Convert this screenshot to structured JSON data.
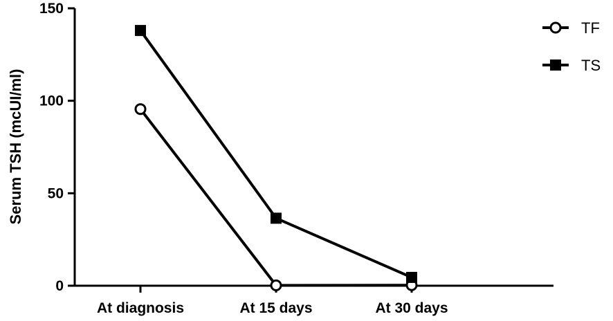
{
  "chart_data": {
    "type": "line",
    "categories": [
      "At diagnosis",
      "At 15 days",
      "At 30 days"
    ],
    "series": [
      {
        "name": "TF",
        "marker": "open-circle",
        "values": [
          95.5,
          0.2,
          0.3
        ]
      },
      {
        "name": "TS",
        "marker": "filled-square",
        "values": [
          138,
          36.5,
          4.5
        ]
      }
    ],
    "ylabel": "Serum TSH (mcUI/ml)",
    "ylim": [
      0,
      150
    ],
    "yticks": [
      0,
      50,
      100,
      150
    ],
    "ytick_labels": [
      "0",
      "50",
      "100",
      "150"
    ],
    "grid": false,
    "legend_position": "top-right",
    "colors": {
      "line": "#000000",
      "marker_fill_open": "#ffffff",
      "background": "#ffffff"
    }
  }
}
